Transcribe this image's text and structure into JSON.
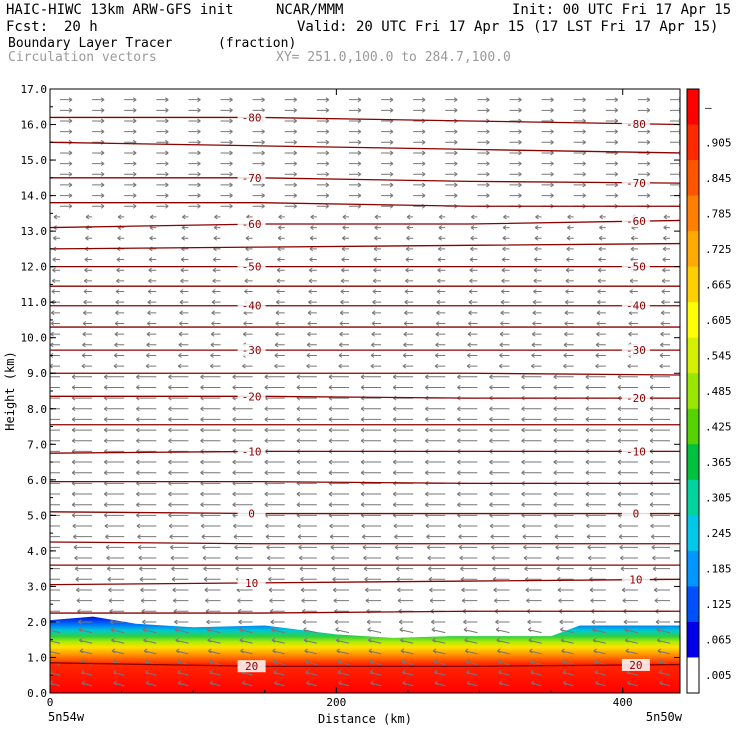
{
  "header": {
    "model": "HAIC-HIWC 13km ARW-GFS init",
    "org": "NCAR/MMM",
    "init": "Init: 00 UTC Fri 17 Apr 15",
    "fcst_label": "Fcst:",
    "fcst_value": "20 h",
    "valid": "Valid: 20 UTC Fri 17 Apr 15 (17 LST Fri 17 Apr 15)",
    "field": "Boundary Layer Tracer",
    "field_units": "(fraction)",
    "vectors": "Circulation vectors",
    "xy": "XY= 251.0,100.0 to 284.7,100.0"
  },
  "colors": {
    "contour": "#8b0000",
    "vector": "#777777"
  },
  "chart_data": {
    "type": "heatmap",
    "xlabel": "Distance (km)",
    "ylabel": "Height (km)",
    "xlim": [
      0,
      440
    ],
    "ylim": [
      0,
      17
    ],
    "x_ticks": [
      0,
      200,
      400
    ],
    "y_ticks": [
      "0.0",
      "1.0",
      "2.0",
      "3.0",
      "4.0",
      "5.0",
      "6.0",
      "7.0",
      "8.0",
      "9.0",
      "10.0",
      "11.0",
      "12.0",
      "13.0",
      "14.0",
      "15.0",
      "16.0",
      "17.0"
    ],
    "x_end_labels": [
      "5n54w",
      "5n50w"
    ],
    "colorbar": {
      "labels": [
        "–",
        ".905",
        ".845",
        ".785",
        ".725",
        ".665",
        ".605",
        ".545",
        ".485",
        ".425",
        ".365",
        ".305",
        ".245",
        ".185",
        ".125",
        ".065",
        ".005"
      ],
      "colors": [
        "#ff0000",
        "#ff2a00",
        "#ff5500",
        "#ff8000",
        "#ffaa00",
        "#ffd000",
        "#ffff00",
        "#d4f000",
        "#9be600",
        "#55d200",
        "#00c040",
        "#00d2a0",
        "#00c8e6",
        "#0096ff",
        "#0050ff",
        "#0000e6",
        "#ffffff"
      ]
    },
    "boundary_layer_top_km": [
      [
        0,
        2.05
      ],
      [
        30,
        2.15
      ],
      [
        60,
        1.95
      ],
      [
        100,
        1.85
      ],
      [
        150,
        1.9
      ],
      [
        200,
        1.65
      ],
      [
        240,
        1.55
      ],
      [
        280,
        1.6
      ],
      [
        320,
        1.6
      ],
      [
        350,
        1.6
      ],
      [
        370,
        1.9
      ],
      [
        400,
        1.9
      ],
      [
        440,
        1.9
      ]
    ],
    "temperature_contours": [
      {
        "label": "-80",
        "heights_km": [
          16.2,
          16.2,
          16.1,
          16.0
        ]
      },
      {
        "label": "",
        "heights_km": [
          15.5,
          15.4,
          15.3,
          15.2
        ]
      },
      {
        "label": "-70",
        "heights_km": [
          14.5,
          14.5,
          14.4,
          14.35
        ]
      },
      {
        "label": "",
        "heights_km": [
          13.8,
          13.8,
          13.7,
          13.7
        ]
      },
      {
        "label": "-60",
        "heights_km": [
          13.1,
          13.2,
          13.2,
          13.3
        ]
      },
      {
        "label": "",
        "heights_km": [
          12.5,
          12.55,
          12.6,
          12.65
        ]
      },
      {
        "label": "-50",
        "heights_km": [
          12.0,
          12.0,
          12.0,
          12.0
        ]
      },
      {
        "label": "",
        "heights_km": [
          11.45,
          11.45,
          11.45,
          11.45
        ]
      },
      {
        "label": "-40",
        "heights_km": [
          10.9,
          10.9,
          10.9,
          10.9
        ]
      },
      {
        "label": "",
        "heights_km": [
          10.3,
          10.3,
          10.3,
          10.3
        ]
      },
      {
        "label": "-30",
        "heights_km": [
          9.65,
          9.65,
          9.65,
          9.65
        ]
      },
      {
        "label": "",
        "heights_km": [
          9.0,
          9.0,
          9.0,
          8.95
        ]
      },
      {
        "label": "-20",
        "heights_km": [
          8.35,
          8.35,
          8.3,
          8.3
        ]
      },
      {
        "label": "",
        "heights_km": [
          7.55,
          7.55,
          7.55,
          7.55
        ]
      },
      {
        "label": "-10",
        "heights_km": [
          6.75,
          6.8,
          6.8,
          6.8
        ]
      },
      {
        "label": "",
        "heights_km": [
          5.95,
          5.95,
          5.9,
          5.9
        ]
      },
      {
        "label": "0",
        "heights_km": [
          5.1,
          5.05,
          5.05,
          5.05
        ]
      },
      {
        "label": "",
        "heights_km": [
          4.25,
          4.2,
          4.2,
          4.2
        ]
      },
      {
        "label": "",
        "heights_km": [
          3.6,
          3.6,
          3.6,
          3.6
        ]
      },
      {
        "label": "10",
        "heights_km": [
          3.05,
          3.1,
          3.15,
          3.2
        ]
      },
      {
        "label": "",
        "heights_km": [
          2.25,
          2.25,
          2.3,
          2.3
        ]
      },
      {
        "label": "20",
        "heights_km": [
          0.85,
          0.75,
          0.75,
          0.8
        ]
      }
    ]
  }
}
